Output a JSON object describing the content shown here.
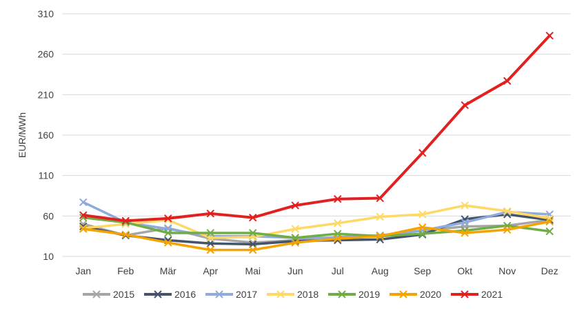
{
  "chart_data": {
    "type": "line",
    "title": "",
    "ylabel": "EUR/MWh",
    "xlabel": "",
    "categories": [
      "Jan",
      "Feb",
      "Mär",
      "Apr",
      "Mai",
      "Jun",
      "Jul",
      "Aug",
      "Sep",
      "Okt",
      "Nov",
      "Dez"
    ],
    "yticks": [
      "10",
      "60",
      "110",
      "160",
      "210",
      "260",
      "310"
    ],
    "ylim": [
      10,
      310
    ],
    "grid": "horizontal",
    "legend_position": "bottom",
    "series": [
      {
        "name": "2015",
        "color": "#A6A6A6",
        "values": [
          50,
          36,
          45,
          32,
          27,
          30,
          34,
          36,
          42,
          47,
          48,
          55
        ]
      },
      {
        "name": "2016",
        "color": "#44546A",
        "values": [
          47,
          36,
          30,
          26,
          25,
          29,
          30,
          31,
          37,
          56,
          62,
          55
        ]
      },
      {
        "name": "2017",
        "color": "#8FAADC",
        "values": [
          77,
          52,
          44,
          35,
          35,
          33,
          33,
          35,
          42,
          52,
          65,
          62
        ]
      },
      {
        "name": "2018",
        "color": "#FFD966",
        "values": [
          45,
          50,
          55,
          33,
          34,
          44,
          51,
          59,
          62,
          73,
          66,
          57
        ]
      },
      {
        "name": "2019",
        "color": "#70AD47",
        "values": [
          58,
          52,
          39,
          39,
          39,
          33,
          38,
          35,
          38,
          42,
          48,
          41
        ]
      },
      {
        "name": "2020",
        "color": "#F5A300",
        "values": [
          44,
          37,
          27,
          18,
          18,
          27,
          32,
          35,
          46,
          39,
          43,
          53
        ]
      },
      {
        "name": "2021",
        "color": "#E32020",
        "values": [
          61,
          54,
          57,
          63,
          58,
          73,
          81,
          82,
          138,
          197,
          227,
          283
        ]
      }
    ]
  }
}
